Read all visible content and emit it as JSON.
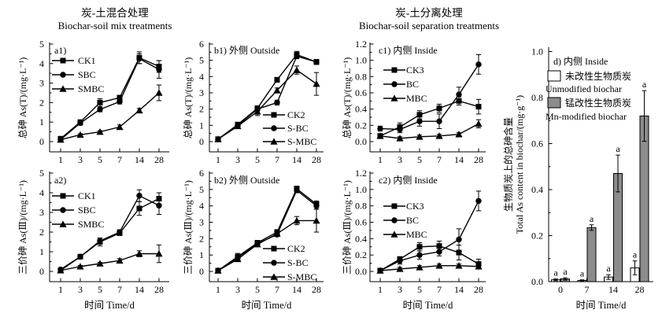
{
  "figure": {
    "group_titles": [
      {
        "cn": "炭-土混合处理",
        "en": "Biochar-soil mix treatments"
      },
      {
        "cn": "炭-土分离处理",
        "en": "Biochar-soil separation treatments"
      }
    ],
    "xlabel": "时间 Time/d"
  },
  "colors": {
    "ink": "#000000",
    "bar_gray": "#8c8c8c",
    "bar_white": "#ffffff",
    "background": "#ffffff"
  },
  "chart_data": [
    {
      "id": "a1",
      "type": "line",
      "panel_label": "a1)",
      "ylabel": "总砷 As(T)/(mg·L⁻¹)",
      "xlabel": null,
      "categories": [
        "1",
        "3",
        "5",
        "7",
        "14",
        "28"
      ],
      "ylim": [
        0,
        5
      ],
      "yticks": [
        0,
        1,
        2,
        3,
        4,
        5
      ],
      "grid": false,
      "legend_position": "upper-left",
      "series": [
        {
          "name": "CK1",
          "marker": "square",
          "values": [
            0.15,
            1.0,
            2.0,
            2.25,
            4.3,
            3.85
          ],
          "errors": [
            0.05,
            0.1,
            0.2,
            0.12,
            0.3,
            0.3
          ]
        },
        {
          "name": "SBC",
          "marker": "circle",
          "values": [
            0.1,
            0.95,
            1.65,
            2.05,
            4.25,
            3.7
          ],
          "errors": [
            0.04,
            0.1,
            0.12,
            0.12,
            0.25,
            0.45
          ]
        },
        {
          "name": "SMBC",
          "marker": "triangle",
          "values": [
            0.1,
            0.35,
            0.5,
            0.75,
            1.6,
            2.5
          ],
          "errors": [
            0.03,
            0.05,
            0.06,
            0.1,
            0.1,
            0.4
          ]
        }
      ]
    },
    {
      "id": "b1",
      "type": "line",
      "panel_label": "b1) 外侧 Outside",
      "ylabel": "总砷 As(T)/(mg·L⁻¹)",
      "xlabel": null,
      "categories": [
        "1",
        "3",
        "5",
        "7",
        "14",
        "28"
      ],
      "ylim": [
        0,
        6
      ],
      "yticks": [
        0,
        1,
        2,
        3,
        4,
        5,
        6
      ],
      "grid": false,
      "legend_position": "lower-right",
      "series": [
        {
          "name": "CK2",
          "marker": "square",
          "values": [
            0.15,
            1.05,
            2.05,
            3.8,
            5.35,
            4.9
          ],
          "errors": [
            0.04,
            0.1,
            0.15,
            0.15,
            0.2,
            0.15
          ]
        },
        {
          "name": "S-BC",
          "marker": "circle",
          "values": [
            0.15,
            1.0,
            2.0,
            2.4,
            5.25,
            4.9
          ],
          "errors": [
            0.04,
            0.1,
            0.12,
            0.15,
            0.15,
            0.15
          ]
        },
        {
          "name": "S-MBC",
          "marker": "triangle",
          "values": [
            0.15,
            0.95,
            1.85,
            3.15,
            4.4,
            3.55
          ],
          "errors": [
            0.04,
            0.1,
            0.25,
            0.15,
            0.25,
            0.7
          ]
        }
      ]
    },
    {
      "id": "c1",
      "type": "line",
      "panel_label": "c1) 内侧 Inside",
      "ylabel": "总砷 As(T)/(mg·L⁻¹)",
      "xlabel": null,
      "categories": [
        "1",
        "3",
        "5",
        "7",
        "14",
        "28"
      ],
      "ylim": [
        0,
        1.2
      ],
      "yticks": [
        0,
        0.2,
        0.4,
        0.6,
        0.8,
        1.0,
        1.2
      ],
      "grid": false,
      "legend_position": "upper-left",
      "series": [
        {
          "name": "CK3",
          "marker": "square",
          "values": [
            0.07,
            0.18,
            0.33,
            0.41,
            0.5,
            0.43
          ],
          "errors": [
            0.02,
            0.05,
            0.05,
            0.05,
            0.05,
            0.09
          ]
        },
        {
          "name": "BC",
          "marker": "circle",
          "values": [
            0.16,
            0.15,
            0.25,
            0.25,
            0.58,
            0.95
          ],
          "errors": [
            0.03,
            0.04,
            0.06,
            0.09,
            0.09,
            0.12
          ]
        },
        {
          "name": "MBC",
          "marker": "triangle",
          "values": [
            0.07,
            0.04,
            0.06,
            0.07,
            0.09,
            0.22
          ],
          "errors": [
            0.02,
            0.02,
            0.02,
            0.02,
            0.02,
            0.05
          ]
        }
      ]
    },
    {
      "id": "a2",
      "type": "line",
      "panel_label": "a2)",
      "ylabel": "三价砷 As(Ⅲ)/(mg·L⁻¹)",
      "xlabel": "时间 Time/d",
      "categories": [
        "1",
        "3",
        "5",
        "7",
        "14",
        "28"
      ],
      "ylim": [
        0,
        5
      ],
      "yticks": [
        0,
        1,
        2,
        3,
        4,
        5
      ],
      "grid": false,
      "legend_position": "upper-left",
      "series": [
        {
          "name": "CK1",
          "marker": "square",
          "values": [
            0.05,
            0.75,
            1.5,
            1.95,
            3.2,
            3.7
          ],
          "errors": [
            0.03,
            0.08,
            0.2,
            0.12,
            0.35,
            0.3
          ]
        },
        {
          "name": "SBC",
          "marker": "circle",
          "values": [
            0.1,
            0.75,
            1.55,
            2.0,
            3.85,
            3.35
          ],
          "errors": [
            0.03,
            0.08,
            0.15,
            0.12,
            0.3,
            0.45
          ]
        },
        {
          "name": "SMBC",
          "marker": "triangle",
          "values": [
            0.05,
            0.25,
            0.4,
            0.55,
            0.9,
            0.9
          ],
          "errors": [
            0.02,
            0.05,
            0.06,
            0.1,
            0.15,
            0.45
          ]
        }
      ]
    },
    {
      "id": "b2",
      "type": "line",
      "panel_label": "b2) 外侧 Outside",
      "ylabel": "三价砷 As(Ⅲ)/(mg·L⁻¹)",
      "xlabel": "时间 Time/d",
      "categories": [
        "1",
        "3",
        "5",
        "7",
        "14",
        "28"
      ],
      "ylim": [
        0,
        6
      ],
      "yticks": [
        0,
        1,
        2,
        3,
        4,
        5,
        6
      ],
      "grid": false,
      "legend_position": "middle-right",
      "series": [
        {
          "name": "CK2",
          "marker": "square",
          "values": [
            0.05,
            0.9,
            1.75,
            2.4,
            5.05,
            4.1
          ],
          "errors": [
            0.03,
            0.2,
            0.1,
            0.15,
            0.15,
            0.2
          ]
        },
        {
          "name": "S-BC",
          "marker": "circle",
          "values": [
            0.05,
            0.85,
            1.7,
            2.25,
            4.95,
            4.0
          ],
          "errors": [
            0.03,
            0.15,
            0.1,
            0.12,
            0.15,
            0.2
          ]
        },
        {
          "name": "S-MBC",
          "marker": "triangle",
          "values": [
            0.05,
            0.75,
            1.65,
            2.3,
            3.1,
            3.1
          ],
          "errors": [
            0.03,
            0.12,
            0.12,
            0.12,
            0.25,
            0.7
          ]
        }
      ]
    },
    {
      "id": "c2",
      "type": "line",
      "panel_label": "c2) 内侧 Inside",
      "ylabel": "三价砷 As(Ⅲ)/(mg·L⁻¹)",
      "xlabel": "时间 Time/d",
      "categories": [
        "1",
        "3",
        "5",
        "7",
        "14",
        "28"
      ],
      "ylim": [
        0,
        1.2
      ],
      "yticks": [
        0,
        0.2,
        0.4,
        0.6,
        0.8,
        1.0,
        1.2
      ],
      "grid": false,
      "legend_position": "middle-left",
      "series": [
        {
          "name": "CK3",
          "marker": "square",
          "values": [
            0.01,
            0.15,
            0.3,
            0.31,
            0.23,
            0.09
          ],
          "errors": [
            0.01,
            0.03,
            0.05,
            0.06,
            0.09,
            0.06
          ]
        },
        {
          "name": "BC",
          "marker": "circle",
          "values": [
            0.01,
            0.13,
            0.2,
            0.24,
            0.39,
            0.86
          ],
          "errors": [
            0.01,
            0.04,
            0.05,
            0.05,
            0.13,
            0.12
          ]
        },
        {
          "name": "MBC",
          "marker": "triangle",
          "values": [
            0.01,
            0.03,
            0.05,
            0.07,
            0.07,
            0.06
          ],
          "errors": [
            0.01,
            0.02,
            0.02,
            0.02,
            0.02,
            0.02
          ]
        }
      ]
    },
    {
      "id": "d",
      "type": "bar",
      "panel_label": "d) 内侧 Inside",
      "ylabel_cn": "生物质炭上的总砷含量",
      "ylabel_en": "Total As content in biochar/(mg·g⁻¹)",
      "xlabel": "时间 Time/d",
      "categories": [
        "0",
        "7",
        "14",
        "28"
      ],
      "ylim": [
        0,
        1.0
      ],
      "yticks": [
        0,
        0.2,
        0.4,
        0.6,
        0.8,
        1.0
      ],
      "grid": false,
      "legend_position": "upper-left",
      "series": [
        {
          "name_cn": "未改性生物质炭",
          "name_en": "Unmodified biochar",
          "fill": "#ffffff",
          "values": [
            0.008,
            0.005,
            0.02,
            0.06
          ],
          "errors": [
            0.004,
            0.003,
            0.01,
            0.03
          ],
          "sig_labels": [
            "a",
            "a",
            "a",
            "a"
          ]
        },
        {
          "name_cn": "锰改性生物质炭",
          "name_en": "Mn-modified biochar",
          "fill": "#8c8c8c",
          "values": [
            0.012,
            0.235,
            0.47,
            0.72
          ],
          "errors": [
            0.005,
            0.012,
            0.08,
            0.11
          ],
          "sig_labels": [
            "a",
            "a",
            "a",
            "a"
          ]
        }
      ]
    }
  ]
}
